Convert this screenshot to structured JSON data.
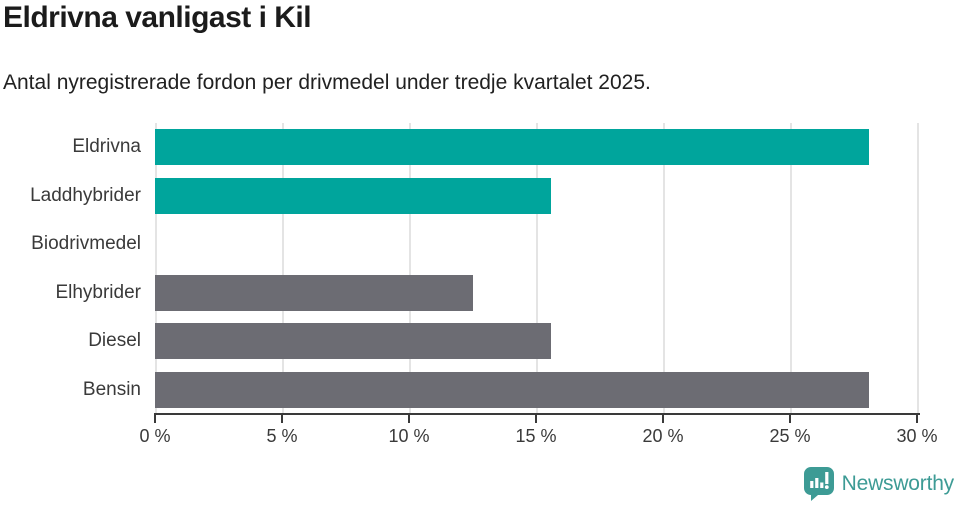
{
  "header": {
    "title": "Eldrivna vanligast i Kil",
    "subtitle": "Antal nyregistrerade fordon per drivmedel under tredje kvartalet 2025."
  },
  "chart_data": {
    "type": "bar",
    "orientation": "horizontal",
    "title": "Eldrivna vanligast i Kil",
    "subtitle": "Antal nyregistrerade fordon per drivmedel under tredje kvartalet 2025.",
    "categories": [
      "Eldrivna",
      "Laddhybrider",
      "Biodrivmedel",
      "Elhybrider",
      "Diesel",
      "Bensin"
    ],
    "values": [
      28.1,
      15.6,
      0,
      12.5,
      15.6,
      28.1
    ],
    "unit": "%",
    "bar_colors": [
      "#00a59c",
      "#00a59c",
      "#00a59c",
      "#6c6c73",
      "#6c6c73",
      "#6c6c73"
    ],
    "highlight_color": "#00a59c",
    "default_color": "#6c6c73",
    "xlim": [
      0,
      30
    ],
    "x_ticks": [
      0,
      5,
      10,
      15,
      20,
      25,
      30
    ],
    "x_tick_labels": [
      "0 %",
      "5 %",
      "10 %",
      "15 %",
      "20 %",
      "25 %",
      "30 %"
    ],
    "grid": true,
    "gridline_color": "#e4e4e4",
    "legend": false
  },
  "footer": {
    "brand": "Newsworthy",
    "brand_color": "#3d9b95",
    "logo_icon": "newsworthy-bar-chart-bubble-icon"
  }
}
